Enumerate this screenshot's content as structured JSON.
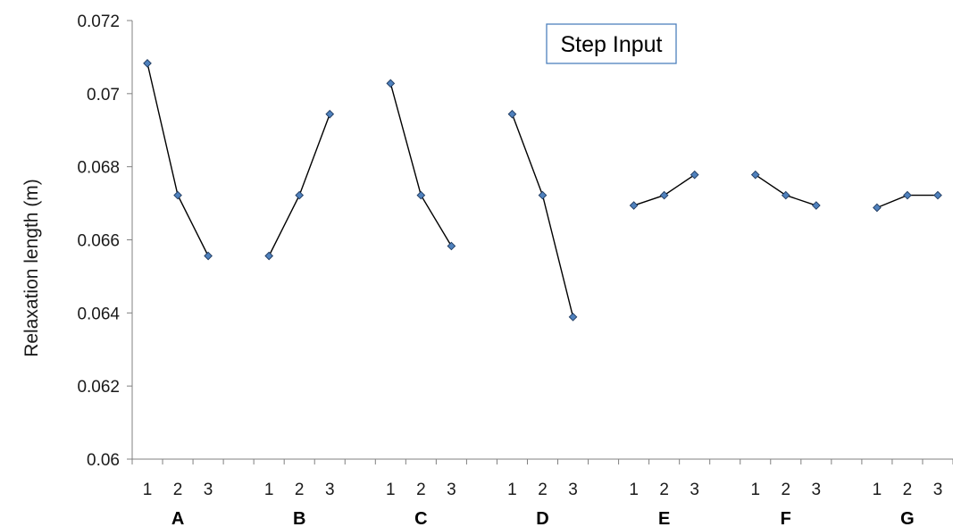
{
  "chart_data": {
    "type": "line",
    "title": "Step Input",
    "ylabel": "Relaxation length (m)",
    "xlabel": "",
    "ylim": [
      0.06,
      0.072
    ],
    "yticks": [
      "0.06",
      "0.062",
      "0.064",
      "0.066",
      "0.068",
      "0.07",
      "0.072"
    ],
    "levels": [
      "1",
      "2",
      "3"
    ],
    "groups": [
      {
        "name": "A",
        "values": [
          0.07083,
          0.06722,
          0.06556
        ]
      },
      {
        "name": "B",
        "values": [
          0.06556,
          0.06722,
          0.06944
        ]
      },
      {
        "name": "C",
        "values": [
          0.07028,
          0.06722,
          0.06583
        ]
      },
      {
        "name": "D",
        "values": [
          0.06944,
          0.06722,
          0.06389
        ]
      },
      {
        "name": "E",
        "values": [
          0.06694,
          0.06722,
          0.06778
        ]
      },
      {
        "name": "F",
        "values": [
          0.06778,
          0.06722,
          0.06694
        ]
      },
      {
        "name": "G",
        "values": [
          0.06688,
          0.06722,
          0.06722
        ]
      }
    ],
    "grid": false,
    "marker": "diamond",
    "marker_color": "#4f81bd",
    "line_color": "#000000",
    "title_border_color": "#4f81bd"
  }
}
